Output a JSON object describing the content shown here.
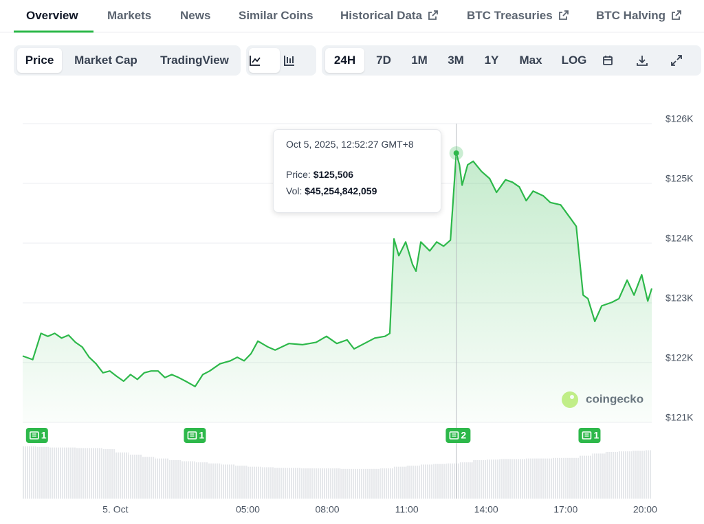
{
  "tabs": [
    "Overview",
    "Markets",
    "News",
    "Similar Coins",
    "Historical Data",
    "BTC Treasuries",
    "BTC Halving"
  ],
  "toolbar": {
    "chart_kind": [
      "Price",
      "Market Cap",
      "TradingView"
    ],
    "ranges": [
      "24H",
      "7D",
      "1M",
      "3M",
      "1Y",
      "Max",
      "LOG"
    ]
  },
  "chart_data": {
    "type": "line",
    "color": "#2db84a",
    "grid": true,
    "x": [
      -3.5,
      -3.12,
      -2.81,
      -2.55,
      -2.29,
      -2.03,
      -1.77,
      -1.51,
      -1.25,
      -0.99,
      -0.73,
      -0.47,
      -0.21,
      0.05,
      0.31,
      0.57,
      0.83,
      1.09,
      1.35,
      1.61,
      1.87,
      2.13,
      2.39,
      2.65,
      3.01,
      3.3,
      3.56,
      3.95,
      4.34,
      4.6,
      4.86,
      5.12,
      5.38,
      5.77,
      6.03,
      6.55,
      7.06,
      7.58,
      7.97,
      8.36,
      8.75,
      9.01,
      9.4,
      9.79,
      10.18,
      10.36,
      10.52,
      10.7,
      10.96,
      11.22,
      11.35,
      11.53,
      11.87,
      12.13,
      12.39,
      12.65,
      12.87,
      12.99,
      13.09,
      13.3,
      13.51,
      13.82,
      14.13,
      14.39,
      14.73,
      14.99,
      15.25,
      15.51,
      15.77,
      16.16,
      16.42,
      16.81,
      17.19,
      17.4,
      17.66,
      17.84,
      18.1,
      18.36,
      18.75,
      19.01,
      19.32,
      19.58,
      19.87,
      20.1,
      20.25
    ],
    "values": [
      122110,
      122050,
      122490,
      122440,
      122490,
      122410,
      122460,
      122340,
      122260,
      122090,
      121980,
      121830,
      121860,
      121770,
      121690,
      121800,
      121720,
      121830,
      121860,
      121860,
      121750,
      121800,
      121750,
      121690,
      121600,
      121800,
      121860,
      121980,
      122030,
      122090,
      122030,
      122150,
      122360,
      122260,
      122210,
      122320,
      122300,
      122340,
      122440,
      122320,
      122380,
      122230,
      122320,
      122410,
      122440,
      122490,
      124070,
      123790,
      124020,
      123640,
      123530,
      124020,
      123870,
      124020,
      123950,
      124050,
      125506,
      125310,
      124970,
      125310,
      125370,
      125200,
      125080,
      124850,
      125060,
      125020,
      124940,
      124710,
      124870,
      124790,
      124680,
      124640,
      124410,
      124280,
      123130,
      123070,
      122690,
      122950,
      123010,
      123070,
      123380,
      123130,
      123470,
      123030,
      123240
    ],
    "xlim": [
      -3.5,
      20.25
    ],
    "ylim": [
      121000,
      126000
    ],
    "xticks": [
      {
        "value": 0,
        "label": "5. Oct"
      },
      {
        "value": 5,
        "label": "05:00"
      },
      {
        "value": 8,
        "label": "08:00"
      },
      {
        "value": 11,
        "label": "11:00"
      },
      {
        "value": 14,
        "label": "14:00"
      },
      {
        "value": 17,
        "label": "17:00"
      },
      {
        "value": 20,
        "label": "20:00"
      }
    ],
    "yticks": [
      {
        "value": 121000,
        "label": "$121K"
      },
      {
        "value": 122000,
        "label": "$122K"
      },
      {
        "value": 123000,
        "label": "$123K"
      },
      {
        "value": 124000,
        "label": "$124K"
      },
      {
        "value": 125000,
        "label": "$125K"
      },
      {
        "value": 126000,
        "label": "$126K"
      }
    ],
    "volume": {
      "x": [
        -3.5,
        -3,
        -2.5,
        -2,
        -1.5,
        -1,
        -0.5,
        0,
        0.5,
        1,
        1.5,
        2,
        2.5,
        3,
        3.5,
        4,
        4.5,
        5,
        5.5,
        6,
        6.5,
        7,
        7.5,
        8,
        8.5,
        9,
        9.5,
        10,
        10.5,
        11,
        11.5,
        12,
        12.5,
        13,
        13.5,
        14,
        14.5,
        15,
        15.5,
        16,
        16.5,
        17,
        17.5,
        18,
        18.5,
        19,
        19.5,
        20
      ],
      "values": [
        95,
        94,
        93,
        93,
        92,
        92,
        90,
        84,
        80,
        76,
        73,
        70,
        68,
        66,
        64,
        62,
        60,
        58,
        57,
        56,
        56,
        55,
        55,
        55,
        54,
        54,
        54,
        55,
        58,
        60,
        62,
        63,
        64,
        66,
        70,
        71,
        72,
        72,
        73,
        73,
        74,
        74,
        78,
        82,
        85,
        86,
        87,
        88
      ]
    },
    "news": {
      "x": [
        -2.96,
        3.0,
        12.94,
        17.9
      ],
      "counts": [
        1,
        1,
        2,
        1
      ]
    },
    "tooltip": {
      "time": "Oct 5, 2025, 12:52:27 GMT+8",
      "price_label": "Price:",
      "price": {
        "value": 125506,
        "label": "$125,506"
      },
      "vol_label": "Vol:",
      "vol": {
        "value": 45254842059,
        "label": "$45,254,842,059"
      }
    },
    "watermark": "coingecko"
  }
}
